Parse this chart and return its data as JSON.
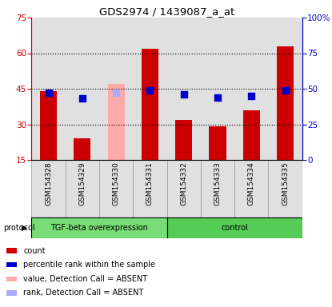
{
  "title": "GDS2974 / 1439087_a_at",
  "samples": [
    "GSM154328",
    "GSM154329",
    "GSM154330",
    "GSM154331",
    "GSM154332",
    "GSM154333",
    "GSM154334",
    "GSM154335"
  ],
  "count_values": [
    44,
    24,
    null,
    62,
    32,
    29,
    36,
    63
  ],
  "count_absent_values": [
    null,
    null,
    47,
    null,
    null,
    null,
    null,
    null
  ],
  "percentile_values": [
    47,
    43,
    null,
    49,
    46,
    44,
    45,
    49
  ],
  "percentile_absent_values": [
    null,
    null,
    47,
    null,
    null,
    null,
    null,
    null
  ],
  "bar_color": "#cc0000",
  "bar_absent_color": "#ffaaaa",
  "dot_color": "#0000cc",
  "dot_absent_color": "#aaaaff",
  "ylim_left": [
    15,
    75
  ],
  "ylim_right": [
    0,
    100
  ],
  "yticks_left": [
    15,
    30,
    45,
    60,
    75
  ],
  "yticks_right": [
    0,
    25,
    50,
    75,
    100
  ],
  "ytick_labels_right": [
    "0",
    "25",
    "50",
    "75",
    "100%"
  ],
  "gridlines_at": [
    30,
    45,
    60
  ],
  "groups": [
    {
      "label": "TGF-beta overexpression",
      "start": 0,
      "end": 4,
      "color": "#77dd77"
    },
    {
      "label": "control",
      "start": 4,
      "end": 8,
      "color": "#55cc55"
    }
  ],
  "protocol_label": "protocol",
  "left_axis_color": "#cc0000",
  "right_axis_color": "#0000cc",
  "bg_color": "#ffffff",
  "plot_bg_color": "#e0e0e0",
  "bar_width": 0.5,
  "dot_size": 28,
  "legend_items": [
    {
      "label": "count",
      "color": "#cc0000"
    },
    {
      "label": "percentile rank within the sample",
      "color": "#0000cc"
    },
    {
      "label": "value, Detection Call = ABSENT",
      "color": "#ffaaaa"
    },
    {
      "label": "rank, Detection Call = ABSENT",
      "color": "#aaaaff"
    }
  ]
}
